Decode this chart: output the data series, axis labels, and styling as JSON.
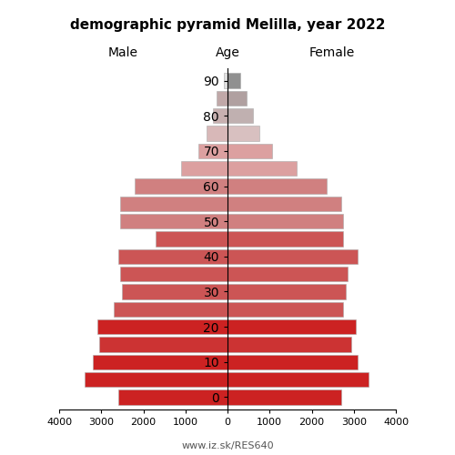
{
  "title": "demographic pyramid Melilla, year 2022",
  "label_left": "Male",
  "label_right": "Female",
  "label_center": "Age",
  "age_groups": [
    0,
    5,
    10,
    15,
    20,
    25,
    30,
    35,
    40,
    45,
    50,
    55,
    60,
    65,
    70,
    75,
    80,
    85,
    90
  ],
  "male_values": [
    2600,
    3400,
    3200,
    3050,
    3100,
    2700,
    2500,
    2550,
    2600,
    1700,
    2550,
    2550,
    2200,
    1100,
    700,
    500,
    350,
    250,
    80
  ],
  "female_values": [
    2700,
    3350,
    3100,
    2950,
    3050,
    2750,
    2800,
    2850,
    3100,
    2750,
    2750,
    2700,
    2350,
    1650,
    1050,
    750,
    600,
    450,
    300
  ],
  "male_colors": [
    "#cc2222",
    "#cc2222",
    "#cc2222",
    "#cc3333",
    "#cc2222",
    "#cc5555",
    "#cc5555",
    "#cc5555",
    "#cc5555",
    "#cc5555",
    "#d08080",
    "#d08080",
    "#d08080",
    "#dca0a0",
    "#dca0a0",
    "#d8b8b8",
    "#c8b0b0",
    "#c0a8a8",
    "#e0e0e0"
  ],
  "female_colors": [
    "#cc2222",
    "#cc2222",
    "#cc2222",
    "#cc3333",
    "#cc2222",
    "#cc5555",
    "#cc5555",
    "#cc5555",
    "#cc5555",
    "#cc5555",
    "#d08080",
    "#d08080",
    "#d08080",
    "#dca0a0",
    "#dca0a0",
    "#d8c0c0",
    "#c0b0b0",
    "#b0a0a0",
    "#909090"
  ],
  "xlim": 4000,
  "watermark": "www.iz.sk/RES640",
  "bar_height": 0.85,
  "figsize": [
    5.0,
    5.0
  ],
  "dpi": 100
}
